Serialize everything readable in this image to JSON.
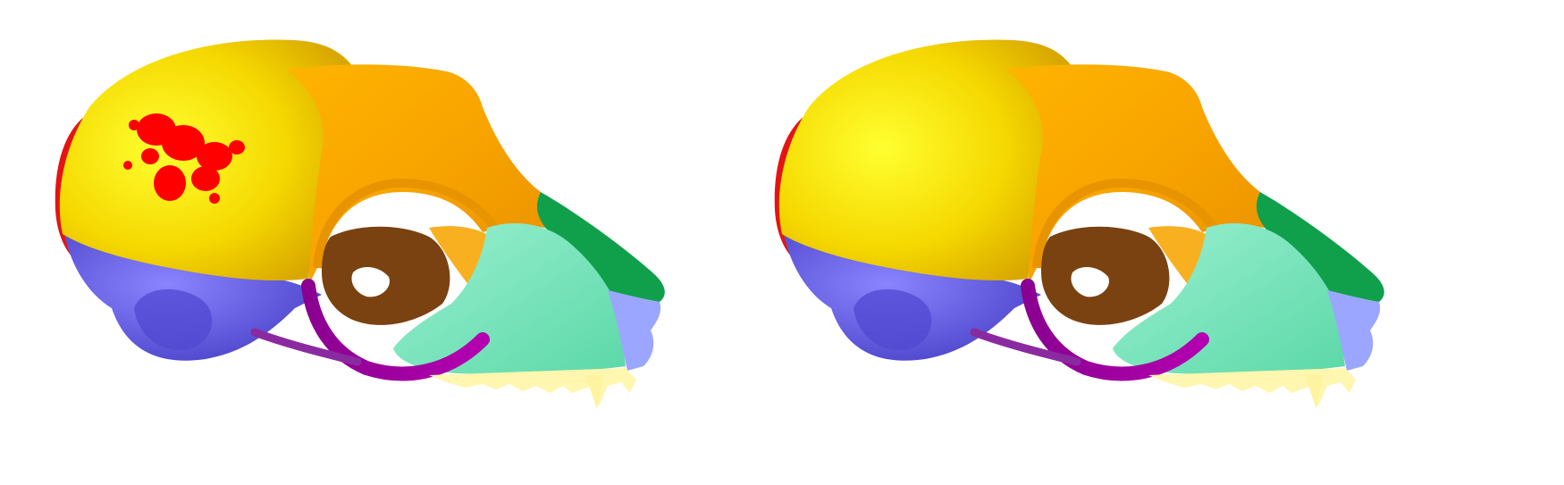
{
  "views": [
    {
      "name": "skull-view-left",
      "highlight": true
    },
    {
      "name": "skull-view-right",
      "highlight": false
    }
  ],
  "colors": {
    "background": "#ffffff",
    "parietal": "#f7dc00",
    "parietal_light": "#ffee22",
    "frontal": "#f8a800",
    "frontal_light": "#ffc020",
    "occipital": "#e01010",
    "temporal": "#6a62e8",
    "maxilla": "#7fe8c0",
    "nasal": "#10a050",
    "premaxilla": "#9aa4ff",
    "zygomatic": "#a000a0",
    "sphenoid": "#7a4210",
    "teeth": "#fff8b0",
    "highlight": "#ff0000"
  }
}
